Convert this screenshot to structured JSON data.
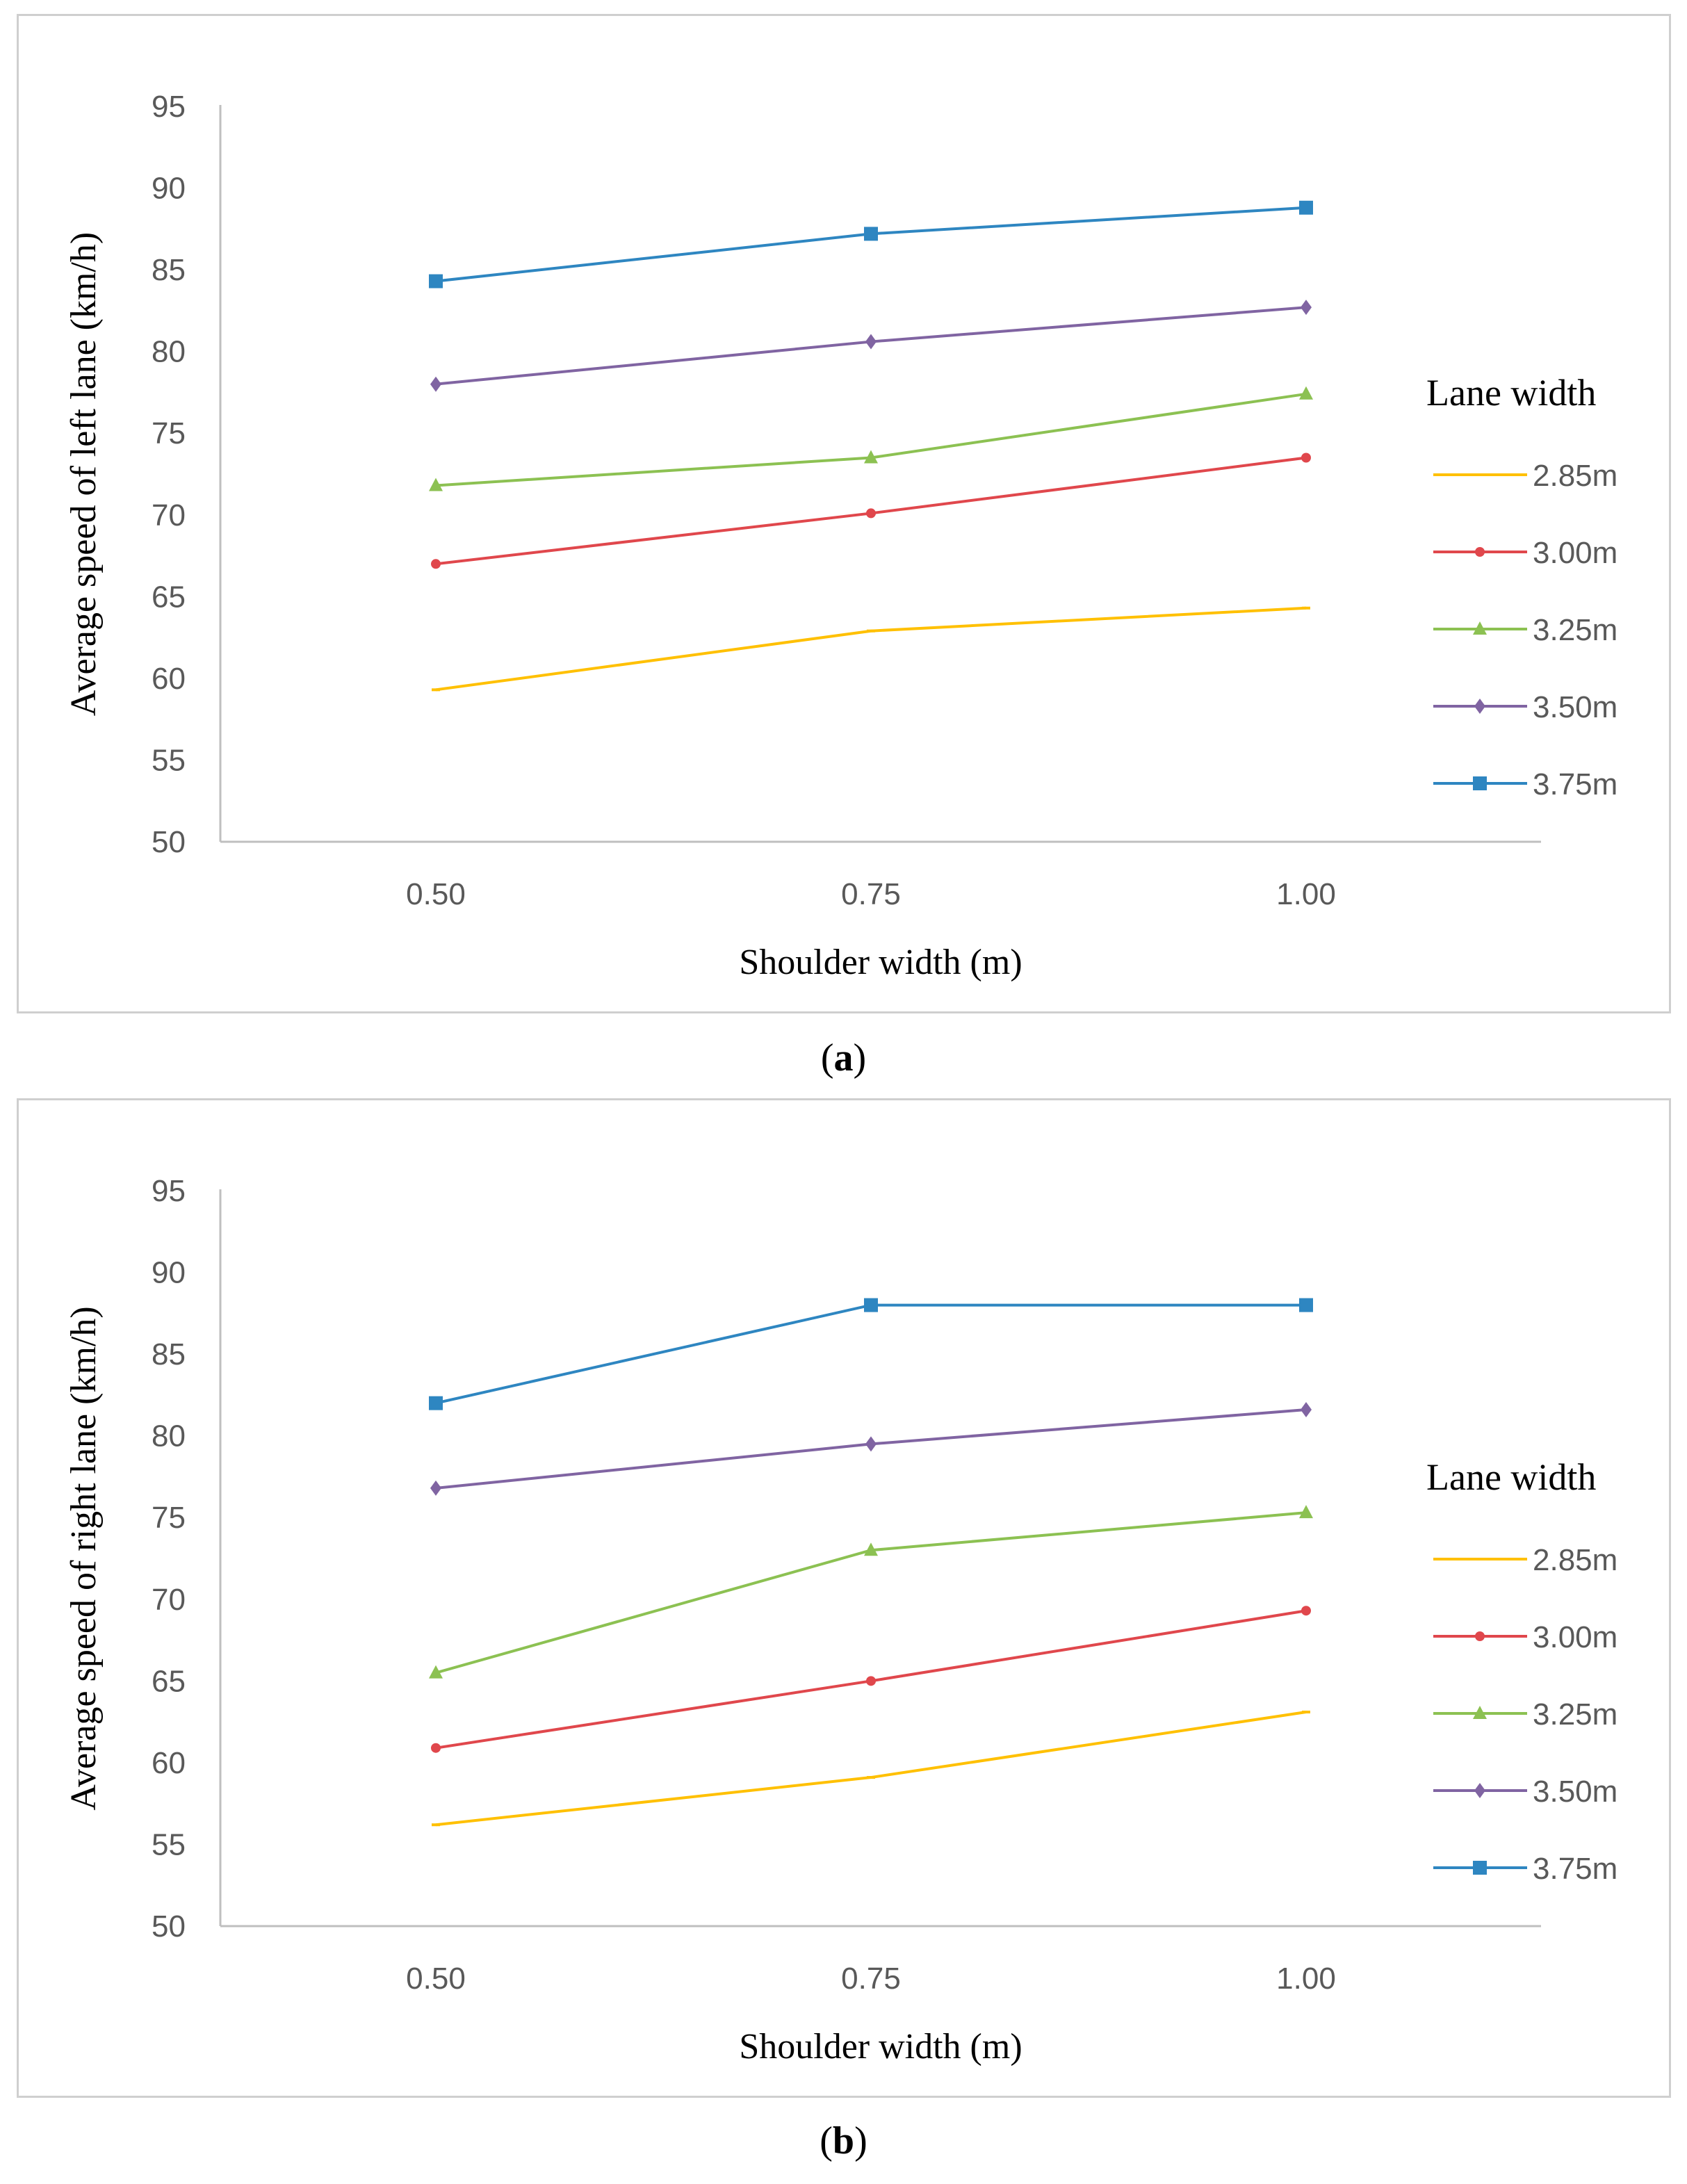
{
  "chart_data": [
    {
      "type": "line",
      "panel_label": "a",
      "title": "",
      "xlabel": "Shoulder width (m)",
      "ylabel": "Average speed of left lane (km/h)",
      "categories": [
        "0.50",
        "0.75",
        "1.00"
      ],
      "ylim": [
        50,
        95
      ],
      "yticks": [
        "50",
        "55",
        "60",
        "65",
        "70",
        "75",
        "80",
        "85",
        "90",
        "95"
      ],
      "legend_title": "Lane width",
      "series": [
        {
          "name": "2.85m",
          "values": [
            59.3,
            62.9,
            64.3
          ],
          "color": "#FFC000",
          "marker": "dash"
        },
        {
          "name": "3.00m",
          "values": [
            67.0,
            70.1,
            73.5
          ],
          "color": "#E0474C",
          "marker": "circle"
        },
        {
          "name": "3.25m",
          "values": [
            71.8,
            73.5,
            77.4
          ],
          "color": "#8CC152",
          "marker": "triangle"
        },
        {
          "name": "3.50m",
          "values": [
            78.0,
            80.6,
            82.7
          ],
          "color": "#8064A2",
          "marker": "diamond"
        },
        {
          "name": "3.75m",
          "values": [
            84.3,
            87.2,
            88.8
          ],
          "color": "#2E86C1",
          "marker": "square"
        }
      ]
    },
    {
      "type": "line",
      "panel_label": "b",
      "title": "",
      "xlabel": "Shoulder width (m)",
      "ylabel": "Average speed of right lane (km/h)",
      "categories": [
        "0.50",
        "0.75",
        "1.00"
      ],
      "ylim": [
        50,
        95
      ],
      "yticks": [
        "50",
        "55",
        "60",
        "65",
        "70",
        "75",
        "80",
        "85",
        "90",
        "95"
      ],
      "legend_title": "Lane width",
      "series": [
        {
          "name": "2.85m",
          "values": [
            56.2,
            59.1,
            63.1
          ],
          "color": "#FFC000",
          "marker": "dash"
        },
        {
          "name": "3.00m",
          "values": [
            60.9,
            65.0,
            69.3
          ],
          "color": "#E0474C",
          "marker": "circle"
        },
        {
          "name": "3.25m",
          "values": [
            65.5,
            73.0,
            75.3
          ],
          "color": "#8CC152",
          "marker": "triangle"
        },
        {
          "name": "3.50m",
          "values": [
            76.8,
            79.5,
            81.6
          ],
          "color": "#8064A2",
          "marker": "diamond"
        },
        {
          "name": "3.75m",
          "values": [
            82.0,
            88.0,
            88.0
          ],
          "color": "#2E86C1",
          "marker": "square"
        }
      ]
    }
  ]
}
